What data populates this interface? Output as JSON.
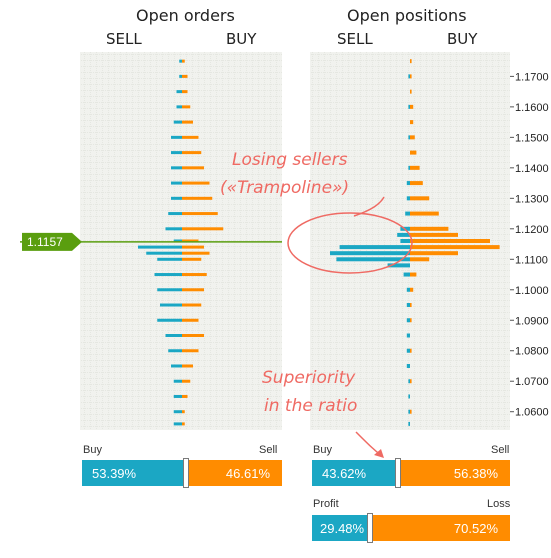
{
  "titles": {
    "orders": "Open orders",
    "positions": "Open positions",
    "sell": "SELL",
    "buy": "BUY"
  },
  "price_tag": "1.1157",
  "y_ticks": [
    "1.1700",
    "1.1600",
    "1.1500",
    "1.1400",
    "1.1300",
    "1.1200",
    "1.1100",
    "1.1000",
    "1.0900",
    "1.0800",
    "1.0700",
    "1.0600"
  ],
  "annotations": {
    "losing_line1": "Losing sellers",
    "losing_line2": "(«Trampoline»)",
    "superiority_line1": "Superiority",
    "superiority_line2": "in the ratio"
  },
  "ratios": {
    "orders": {
      "buy_label": "Buy",
      "sell_label": "Sell",
      "buy_pct": "53.39%",
      "sell_pct": "46.61%",
      "buy_value": 53.39
    },
    "positions": {
      "buy_label": "Buy",
      "sell_label": "Sell",
      "buy_pct": "43.62%",
      "sell_pct": "56.38%",
      "buy_value": 43.62
    },
    "profit_loss": {
      "profit_label": "Profit",
      "loss_label": "Loss",
      "profit_pct": "29.48%",
      "loss_pct": "70.52%",
      "profit_value": 29.48
    }
  },
  "colors": {
    "buy": "#ff8c00",
    "sell": "#1ba7c4",
    "price_line": "#5a9e0f",
    "annotation": "#ef6a63"
  },
  "chart_data": [
    {
      "type": "bar",
      "title": "Open orders",
      "orientation": "horizontal",
      "current_price": 1.1157,
      "price_range": [
        1.054,
        1.178
      ],
      "series": [
        {
          "name": "SELL",
          "color": "#1ba7c4",
          "side": "left",
          "prices": [
            1.175,
            1.17,
            1.165,
            1.16,
            1.155,
            1.15,
            1.145,
            1.14,
            1.135,
            1.13,
            1.125,
            1.12,
            1.116,
            1.114,
            1.112,
            1.11,
            1.105,
            1.1,
            1.095,
            1.09,
            1.085,
            1.08,
            1.075,
            1.07,
            1.065,
            1.06,
            1.056
          ],
          "values": [
            0.5,
            0.5,
            1,
            1,
            1.5,
            2,
            2,
            2,
            2,
            2,
            2.5,
            3,
            1.5,
            8,
            6.5,
            4.5,
            5,
            4.5,
            4,
            4.5,
            3,
            2.5,
            2,
            1.5,
            1.5,
            1.5,
            1.5
          ]
        },
        {
          "name": "BUY",
          "color": "#ff8c00",
          "side": "right",
          "prices": [
            1.175,
            1.17,
            1.165,
            1.16,
            1.155,
            1.15,
            1.145,
            1.14,
            1.135,
            1.13,
            1.125,
            1.12,
            1.116,
            1.114,
            1.112,
            1.11,
            1.105,
            1.1,
            1.095,
            1.09,
            1.085,
            1.08,
            1.075,
            1.07,
            1.065,
            1.06,
            1.056
          ],
          "values": [
            0.5,
            1,
            1,
            1.5,
            2,
            3,
            3.5,
            4,
            5,
            5.5,
            6.5,
            7.5,
            3,
            4,
            5,
            3.5,
            4.5,
            4,
            3.5,
            3,
            4,
            3,
            2,
            1.5,
            1,
            0.5,
            0.5
          ]
        }
      ]
    },
    {
      "type": "bar",
      "title": "Open positions",
      "orientation": "horizontal",
      "current_price": 1.1157,
      "price_range": [
        1.054,
        1.178
      ],
      "series": [
        {
          "name": "SELL",
          "color": "#1ba7c4",
          "side": "left",
          "prices": [
            1.17,
            1.16,
            1.15,
            1.14,
            1.135,
            1.13,
            1.125,
            1.12,
            1.118,
            1.116,
            1.114,
            1.112,
            1.11,
            1.108,
            1.105,
            1.1,
            1.095,
            1.09,
            1.085,
            1.08,
            1.075,
            1.07,
            1.065,
            1.06,
            1.056
          ],
          "values": [
            0.5,
            0.5,
            0.5,
            0.5,
            1,
            1,
            1.5,
            3,
            4,
            3,
            22,
            25,
            23,
            7,
            2,
            1,
            1,
            1,
            1,
            1,
            1,
            0.5,
            0.5,
            0.5,
            0.5
          ]
        },
        {
          "name": "BUY",
          "color": "#ff8c00",
          "side": "right",
          "prices": [
            1.175,
            1.17,
            1.165,
            1.16,
            1.155,
            1.15,
            1.145,
            1.14,
            1.135,
            1.13,
            1.125,
            1.12,
            1.118,
            1.116,
            1.114,
            1.112,
            1.11,
            1.105,
            1.1,
            1.095,
            1.09,
            1.08,
            1.07,
            1.06
          ],
          "values": [
            0.5,
            0.5,
            0.5,
            1,
            1,
            1.5,
            2,
            3,
            4,
            6,
            9,
            12,
            15,
            25,
            28,
            15,
            6,
            2,
            1,
            0.5,
            0.5,
            0.5,
            0.5,
            0.5
          ]
        }
      ]
    }
  ]
}
